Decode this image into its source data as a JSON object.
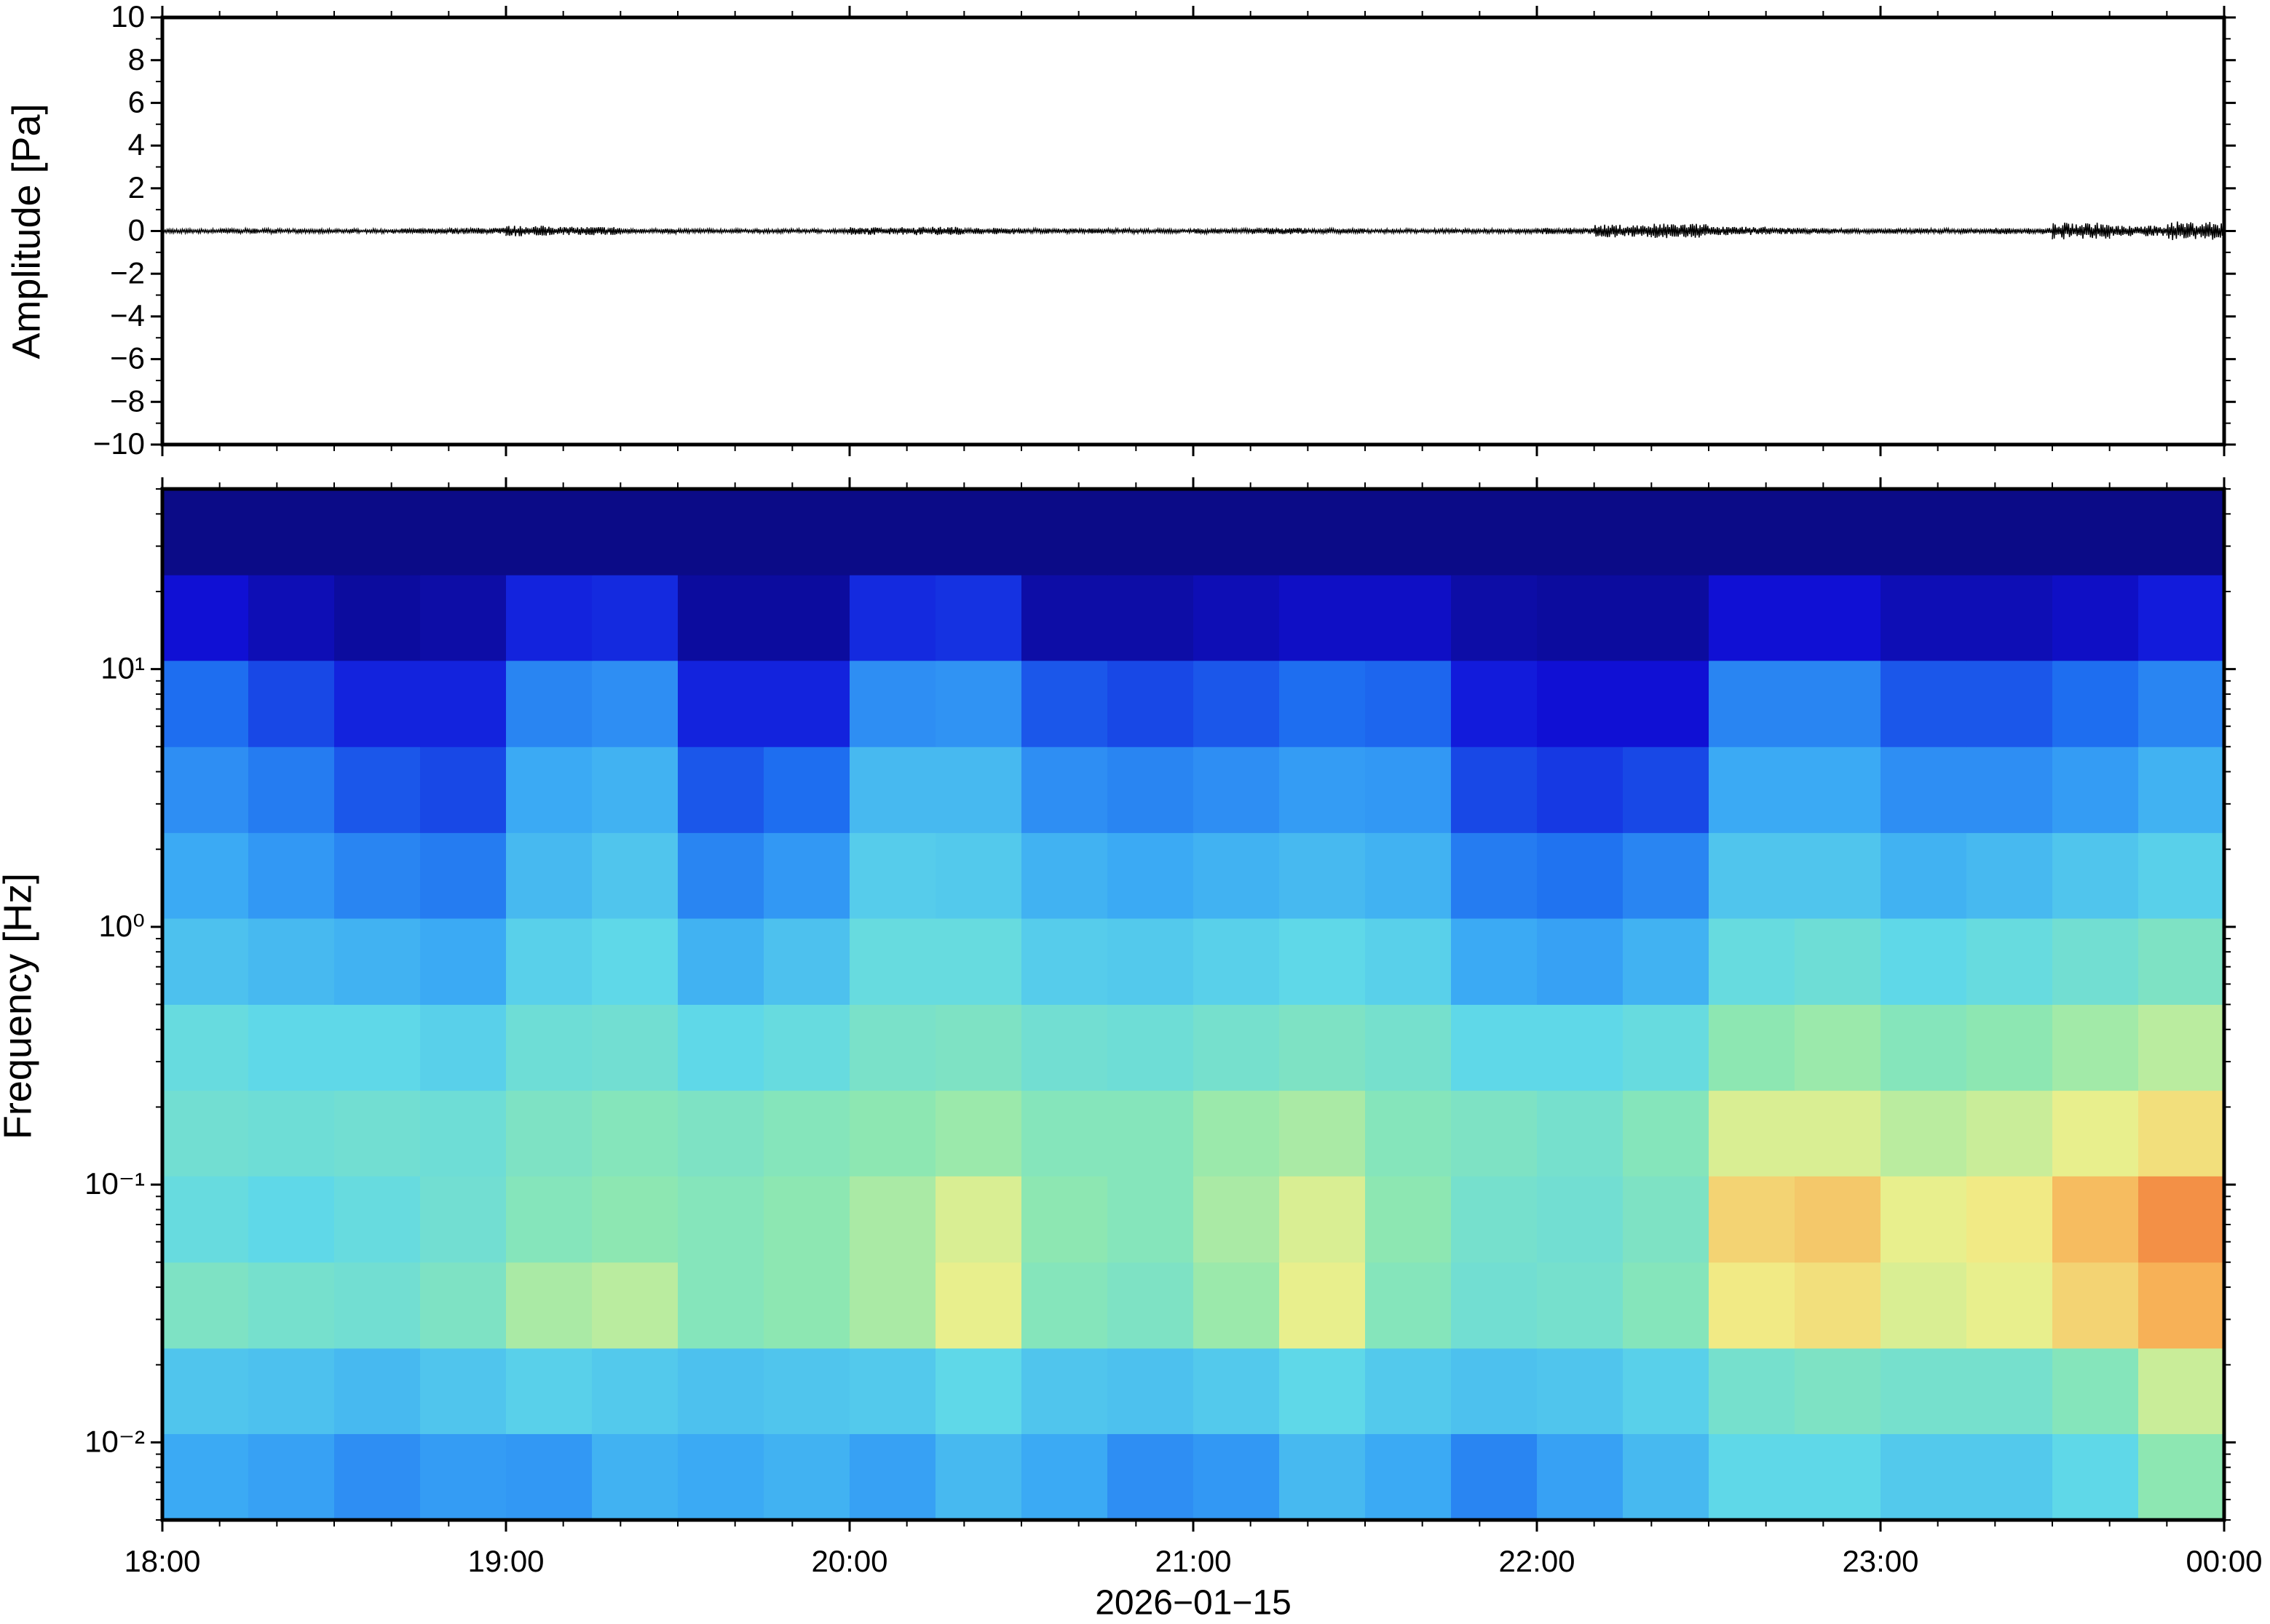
{
  "chart_data": [
    {
      "type": "envelope",
      "ylabel": "Amplitude [Pa]",
      "color": "#000000",
      "xlim": [
        0,
        360
      ],
      "xticks": [
        0,
        60,
        120,
        180,
        240,
        300,
        360
      ],
      "ylim": [
        -10,
        10
      ],
      "yticks": [
        {
          "value": -10,
          "label": "−10"
        },
        {
          "value": -8,
          "label": "−8"
        },
        {
          "value": -6,
          "label": "−6"
        },
        {
          "value": -4,
          "label": "−4"
        },
        {
          "value": -2,
          "label": "−2"
        },
        0,
        2,
        4,
        6,
        8,
        10
      ],
      "x": [
        5,
        15,
        25,
        35,
        45,
        55,
        65,
        75,
        85,
        95,
        105,
        115,
        125,
        135,
        145,
        155,
        165,
        175,
        185,
        195,
        205,
        215,
        225,
        235,
        245,
        255,
        265,
        275,
        285,
        295,
        305,
        315,
        325,
        335,
        345,
        355
      ],
      "values": [
        0.1,
        0.12,
        0.1,
        0.1,
        0.12,
        0.15,
        0.25,
        0.2,
        0.12,
        0.1,
        0.1,
        0.1,
        0.18,
        0.2,
        0.15,
        0.12,
        0.12,
        0.1,
        0.12,
        0.15,
        0.12,
        0.1,
        0.1,
        0.12,
        0.15,
        0.3,
        0.35,
        0.2,
        0.15,
        0.12,
        0.12,
        0.12,
        0.15,
        0.4,
        0.25,
        0.45
      ]
    },
    {
      "type": "heatmap",
      "ylabel": "Frequency [Hz]",
      "xlabel": "2026−01−15",
      "log_y": true,
      "xlim": [
        0,
        360
      ],
      "xticks": [
        {
          "value": 0,
          "label": "18:00"
        },
        {
          "value": 60,
          "label": "19:00"
        },
        {
          "value": 120,
          "label": "20:00"
        },
        {
          "value": 180,
          "label": "21:00"
        },
        {
          "value": 240,
          "label": "22:00"
        },
        {
          "value": 300,
          "label": "23:00"
        },
        {
          "value": 360,
          "label": "00:00"
        }
      ],
      "ylim": [
        0.005,
        50
      ],
      "yticks": [
        {
          "value": 0.01,
          "label": "10⁻²"
        },
        {
          "value": 0.1,
          "label": "10⁻¹"
        },
        {
          "value": 1,
          "label": "10⁰"
        },
        {
          "value": 10,
          "label": "10¹"
        }
      ],
      "colormap": [
        "#0a0a78",
        "#1010d8",
        "#1e6ef0",
        "#3aa8f5",
        "#5fd8e8",
        "#8fe8b0",
        "#f0f08a",
        "#f8a850",
        "#e03020"
      ],
      "zlim": [
        0,
        1
      ],
      "xbins": [
        0,
        15,
        30,
        45,
        60,
        75,
        90,
        105,
        120,
        135,
        150,
        165,
        180,
        195,
        210,
        225,
        240,
        255,
        270,
        285,
        300,
        315,
        330,
        345,
        360
      ],
      "ybins": [
        0.005,
        0.0108,
        0.0232,
        0.05,
        0.108,
        0.232,
        0.5,
        1.08,
        2.32,
        5,
        10.8,
        23.2,
        50
      ],
      "z": [
        [
          0.38,
          0.36,
          0.32,
          0.35,
          0.34,
          0.4,
          0.38,
          0.4,
          0.36,
          0.42,
          0.38,
          0.32,
          0.34,
          0.42,
          0.38,
          0.3,
          0.36,
          0.42,
          0.5,
          0.5,
          0.46,
          0.46,
          0.5,
          0.62
        ],
        [
          0.45,
          0.44,
          0.42,
          0.45,
          0.48,
          0.46,
          0.44,
          0.45,
          0.46,
          0.5,
          0.45,
          0.44,
          0.46,
          0.5,
          0.46,
          0.44,
          0.45,
          0.48,
          0.56,
          0.58,
          0.56,
          0.56,
          0.6,
          0.7
        ],
        [
          0.58,
          0.56,
          0.55,
          0.58,
          0.66,
          0.68,
          0.6,
          0.62,
          0.66,
          0.74,
          0.6,
          0.58,
          0.64,
          0.74,
          0.6,
          0.55,
          0.56,
          0.6,
          0.76,
          0.78,
          0.72,
          0.74,
          0.8,
          0.86
        ],
        [
          0.52,
          0.5,
          0.52,
          0.55,
          0.6,
          0.62,
          0.6,
          0.62,
          0.66,
          0.72,
          0.62,
          0.6,
          0.66,
          0.72,
          0.62,
          0.56,
          0.55,
          0.58,
          0.8,
          0.82,
          0.74,
          0.76,
          0.84,
          0.9
        ],
        [
          0.55,
          0.54,
          0.55,
          0.54,
          0.58,
          0.6,
          0.58,
          0.6,
          0.62,
          0.64,
          0.6,
          0.6,
          0.64,
          0.66,
          0.6,
          0.58,
          0.56,
          0.6,
          0.72,
          0.72,
          0.68,
          0.7,
          0.74,
          0.78
        ],
        [
          0.52,
          0.5,
          0.5,
          0.48,
          0.54,
          0.55,
          0.5,
          0.52,
          0.57,
          0.58,
          0.55,
          0.54,
          0.56,
          0.58,
          0.56,
          0.5,
          0.5,
          0.52,
          0.62,
          0.64,
          0.6,
          0.62,
          0.65,
          0.68
        ],
        [
          0.44,
          0.42,
          0.4,
          0.38,
          0.48,
          0.5,
          0.4,
          0.44,
          0.52,
          0.52,
          0.47,
          0.46,
          0.48,
          0.5,
          0.48,
          0.38,
          0.36,
          0.4,
          0.52,
          0.54,
          0.5,
          0.52,
          0.55,
          0.58
        ],
        [
          0.38,
          0.34,
          0.3,
          0.28,
          0.42,
          0.45,
          0.3,
          0.34,
          0.47,
          0.46,
          0.4,
          0.38,
          0.4,
          0.42,
          0.4,
          0.28,
          0.26,
          0.3,
          0.45,
          0.45,
          0.4,
          0.42,
          0.45,
          0.48
        ],
        [
          0.32,
          0.28,
          0.22,
          0.2,
          0.38,
          0.4,
          0.22,
          0.25,
          0.42,
          0.42,
          0.32,
          0.3,
          0.32,
          0.35,
          0.34,
          0.2,
          0.18,
          0.2,
          0.38,
          0.38,
          0.32,
          0.32,
          0.35,
          0.4
        ],
        [
          0.25,
          0.2,
          0.15,
          0.15,
          0.3,
          0.32,
          0.15,
          0.15,
          0.32,
          0.33,
          0.22,
          0.2,
          0.22,
          0.25,
          0.24,
          0.14,
          0.12,
          0.12,
          0.3,
          0.3,
          0.22,
          0.22,
          0.25,
          0.3
        ],
        [
          0.12,
          0.08,
          0.05,
          0.06,
          0.15,
          0.16,
          0.05,
          0.05,
          0.16,
          0.17,
          0.06,
          0.06,
          0.08,
          0.1,
          0.1,
          0.06,
          0.05,
          0.05,
          0.12,
          0.12,
          0.08,
          0.08,
          0.1,
          0.14
        ],
        [
          0.02,
          0.02,
          0.02,
          0.02,
          0.02,
          0.02,
          0.02,
          0.02,
          0.02,
          0.02,
          0.02,
          0.02,
          0.02,
          0.02,
          0.02,
          0.02,
          0.02,
          0.02,
          0.02,
          0.02,
          0.02,
          0.02,
          0.02,
          0.02
        ]
      ]
    }
  ]
}
